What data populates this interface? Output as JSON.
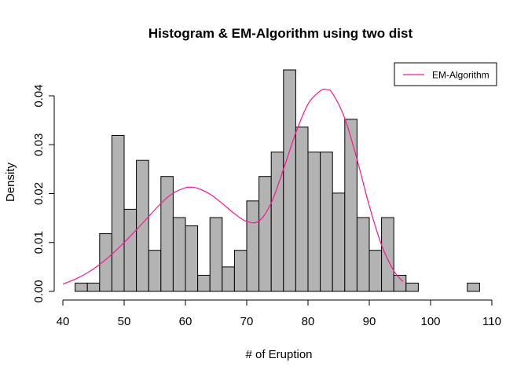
{
  "chart_data": {
    "type": "bar",
    "title": "Histogram & EM-Algorithm using two dist",
    "xlabel": "# of Eruption",
    "ylabel": "Density",
    "xlim": [
      40,
      110
    ],
    "ylim": [
      0,
      0.045
    ],
    "xticks": [
      "40",
      "50",
      "60",
      "70",
      "80",
      "90",
      "100",
      "110"
    ],
    "yticks": [
      "0.00",
      "0.01",
      "0.02",
      "0.03",
      "0.04"
    ],
    "histogram": {
      "bin_width": 2,
      "bins": [
        {
          "x0": 42,
          "x1": 44,
          "density": 0.0017
        },
        {
          "x0": 44,
          "x1": 46,
          "density": 0.0017
        },
        {
          "x0": 46,
          "x1": 48,
          "density": 0.0118
        },
        {
          "x0": 48,
          "x1": 50,
          "density": 0.0319
        },
        {
          "x0": 50,
          "x1": 52,
          "density": 0.0168
        },
        {
          "x0": 52,
          "x1": 54,
          "density": 0.0268
        },
        {
          "x0": 54,
          "x1": 56,
          "density": 0.0084
        },
        {
          "x0": 56,
          "x1": 58,
          "density": 0.0235
        },
        {
          "x0": 58,
          "x1": 60,
          "density": 0.0151
        },
        {
          "x0": 60,
          "x1": 62,
          "density": 0.0134
        },
        {
          "x0": 62,
          "x1": 64,
          "density": 0.0033
        },
        {
          "x0": 64,
          "x1": 66,
          "density": 0.0151
        },
        {
          "x0": 66,
          "x1": 68,
          "density": 0.005
        },
        {
          "x0": 68,
          "x1": 70,
          "density": 0.0084
        },
        {
          "x0": 70,
          "x1": 72,
          "density": 0.0185
        },
        {
          "x0": 72,
          "x1": 74,
          "density": 0.0235
        },
        {
          "x0": 74,
          "x1": 76,
          "density": 0.0285
        },
        {
          "x0": 76,
          "x1": 78,
          "density": 0.0453
        },
        {
          "x0": 78,
          "x1": 80,
          "density": 0.0336
        },
        {
          "x0": 80,
          "x1": 82,
          "density": 0.0285
        },
        {
          "x0": 82,
          "x1": 84,
          "density": 0.0285
        },
        {
          "x0": 84,
          "x1": 86,
          "density": 0.0201
        },
        {
          "x0": 86,
          "x1": 88,
          "density": 0.0352
        },
        {
          "x0": 88,
          "x1": 90,
          "density": 0.0151
        },
        {
          "x0": 90,
          "x1": 92,
          "density": 0.0084
        },
        {
          "x0": 92,
          "x1": 94,
          "density": 0.0151
        },
        {
          "x0": 94,
          "x1": 96,
          "density": 0.0033
        },
        {
          "x0": 96,
          "x1": 98,
          "density": 0.0017
        },
        {
          "x0": 98,
          "x1": 100,
          "density": 0.0
        },
        {
          "x0": 100,
          "x1": 102,
          "density": 0.0
        },
        {
          "x0": 102,
          "x1": 104,
          "density": 0.0
        },
        {
          "x0": 104,
          "x1": 106,
          "density": 0.0
        },
        {
          "x0": 106,
          "x1": 108,
          "density": 0.0017
        }
      ],
      "fill": "#b3b3b3",
      "stroke": "#000000"
    },
    "series": [
      {
        "name": "EM-Algorithm",
        "color": "#ff1493",
        "x": [
          40,
          42,
          44,
          46,
          48,
          50,
          52,
          54,
          56,
          58,
          60,
          61,
          62,
          64,
          66,
          68,
          70,
          72,
          74,
          76,
          78,
          80,
          82,
          83,
          84,
          86,
          88,
          90,
          92,
          94,
          95.5
        ],
        "y": [
          0.0015,
          0.0025,
          0.0038,
          0.0055,
          0.0076,
          0.01,
          0.0126,
          0.0153,
          0.018,
          0.0201,
          0.0212,
          0.0213,
          0.0211,
          0.0199,
          0.018,
          0.0159,
          0.0143,
          0.0144,
          0.0181,
          0.025,
          0.0324,
          0.0383,
          0.041,
          0.0413,
          0.0405,
          0.0354,
          0.027,
          0.0175,
          0.0095,
          0.0042,
          0.002
        ]
      }
    ],
    "legend": {
      "position": "top-right",
      "entries": [
        "EM-Algorithm"
      ]
    },
    "grid": false
  }
}
